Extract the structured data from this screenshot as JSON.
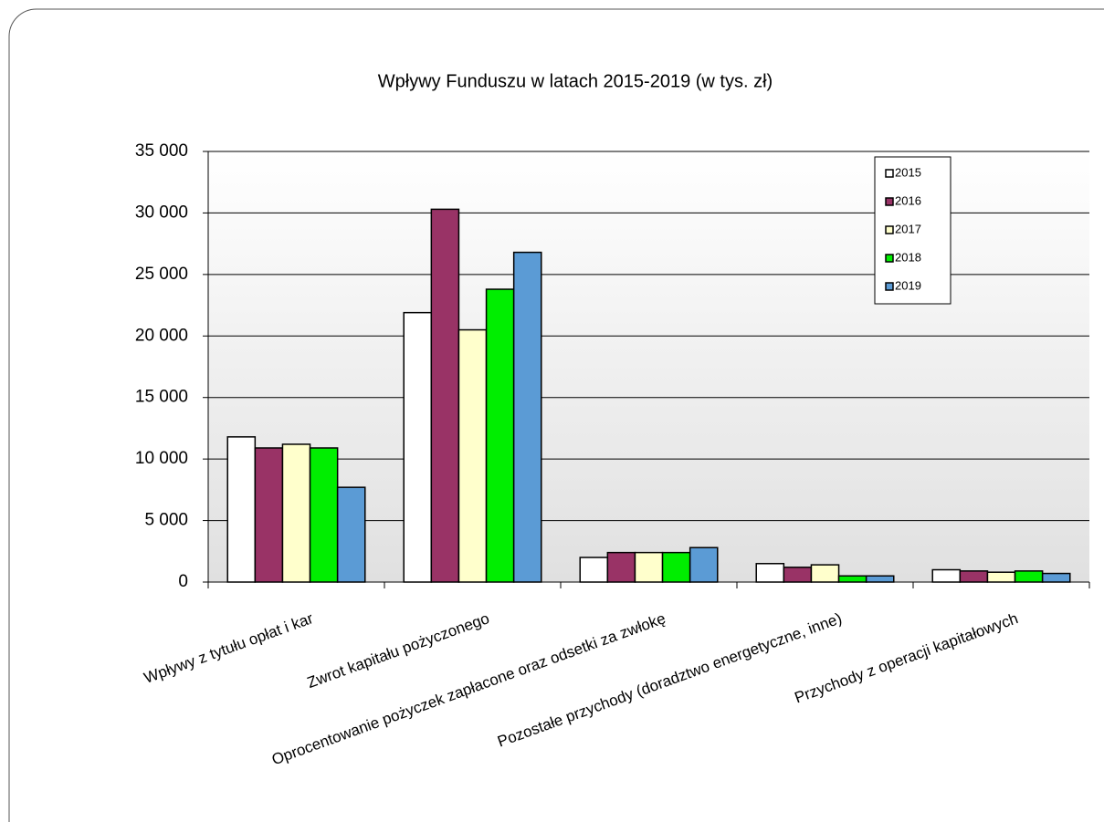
{
  "chart_data": {
    "type": "bar",
    "title": "Wpływy Funduszu w latach 2015-2019 (w tys. zł)",
    "categories": [
      "Wpływy z tytułu opłat i kar",
      "Zwrot kapitału pożyczonego",
      "Oprocentowanie pożyczek  zapłacone oraz odsetki za zwłokę",
      "Pozostałe przychody  (doradztwo energetyczne, inne)",
      "Przychody z operacji kapitałowych"
    ],
    "series": [
      {
        "name": "2015",
        "color": "#ffffff",
        "values": [
          11800,
          21900,
          2000,
          1500,
          1000
        ]
      },
      {
        "name": "2016",
        "color": "#993366",
        "values": [
          10900,
          30300,
          2400,
          1200,
          900
        ]
      },
      {
        "name": "2017",
        "color": "#ffffcc",
        "values": [
          11200,
          20500,
          2400,
          1400,
          800
        ]
      },
      {
        "name": "2018",
        "color": "#00ee00",
        "values": [
          10900,
          23800,
          2400,
          500,
          900
        ]
      },
      {
        "name": "2019",
        "color": "#5b9bd5",
        "values": [
          7700,
          26800,
          2800,
          500,
          700
        ]
      }
    ],
    "ylim": [
      0,
      35000
    ],
    "yticks": [
      0,
      {
        "value": 5000,
        "label": "5 000"
      },
      {
        "value": 10000,
        "label": "10 000"
      },
      {
        "value": 15000,
        "label": "15 000"
      },
      {
        "value": 20000,
        "label": "20 000"
      },
      {
        "value": 25000,
        "label": "25 000"
      },
      {
        "value": 30000,
        "label": "30 000"
      },
      {
        "value": 35000,
        "label": "35 000"
      }
    ],
    "grid": true,
    "legend": "upper right"
  }
}
